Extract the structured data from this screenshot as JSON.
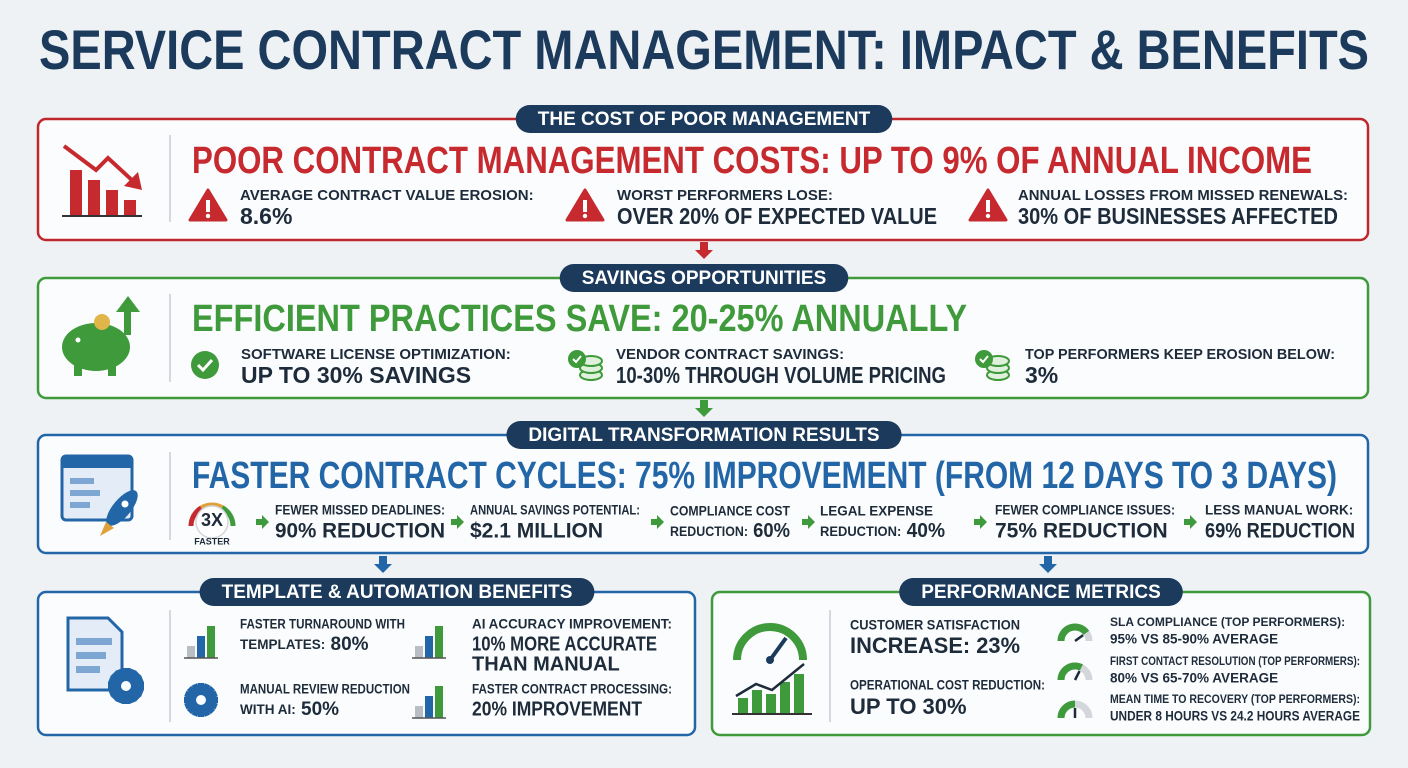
{
  "title": "SERVICE CONTRACT MANAGEMENT: IMPACT & BENEFITS",
  "cost": {
    "label": "THE COST OF POOR MANAGEMENT",
    "headline": "POOR CONTRACT MANAGEMENT COSTS: UP TO 9% OF ANNUAL INCOME",
    "items": [
      {
        "label": "AVERAGE CONTRACT VALUE EROSION:",
        "value": "8.6%"
      },
      {
        "label": "WORST PERFORMERS LOSE:",
        "value": "OVER 20% OF EXPECTED VALUE"
      },
      {
        "label": "ANNUAL LOSSES FROM MISSED RENEWALS:",
        "value": "30% OF BUSINESSES AFFECTED"
      }
    ]
  },
  "savings": {
    "label": "SAVINGS OPPORTUNITIES",
    "headline": "EFFICIENT PRACTICES SAVE: 20-25% ANNUALLY",
    "items": [
      {
        "label": "SOFTWARE LICENSE OPTIMIZATION:",
        "value": "UP TO 30% SAVINGS"
      },
      {
        "label": "VENDOR CONTRACT SAVINGS:",
        "value": "10-30% THROUGH VOLUME PRICING"
      },
      {
        "label": "TOP PERFORMERS KEEP EROSION BELOW:",
        "value": "3%"
      }
    ]
  },
  "digital": {
    "label": "DIGITAL TRANSFORMATION RESULTS",
    "headline": "FASTER CONTRACT CYCLES: 75% IMPROVEMENT (FROM 12 DAYS TO 3 DAYS)",
    "badge": {
      "value": "3X",
      "label": "FASTER"
    },
    "items": [
      {
        "label": [
          "FEWER MISSED DEADLINES:"
        ],
        "value": "90% REDUCTION"
      },
      {
        "label": [
          "ANNUAL SAVINGS POTENTIAL:"
        ],
        "value": "$2.1 MILLION"
      },
      {
        "label": [
          "COMPLIANCE COST",
          "REDUCTION:"
        ],
        "value": "60%"
      },
      {
        "label": [
          "LEGAL EXPENSE",
          "REDUCTION:"
        ],
        "value": "40%"
      },
      {
        "label": [
          "FEWER COMPLIANCE ISSUES:"
        ],
        "value": "75% REDUCTION"
      },
      {
        "label": [
          "LESS MANUAL WORK:"
        ],
        "value": "69% REDUCTION"
      }
    ]
  },
  "template": {
    "label": "TEMPLATE & AUTOMATION BENEFITS",
    "items": [
      {
        "label": [
          "FASTER TURNAROUND WITH",
          "TEMPLATES:"
        ],
        "value": [
          "80%"
        ]
      },
      {
        "label": [
          "AI ACCURACY IMPROVEMENT:"
        ],
        "value": [
          "10% MORE ACCURATE",
          "THAN MANUAL"
        ]
      },
      {
        "label": [
          "MANUAL REVIEW REDUCTION",
          "WITH AI:"
        ],
        "value": [
          "50%"
        ]
      },
      {
        "label": [
          "FASTER CONTRACT PROCESSING:"
        ],
        "value": [
          "20% IMPROVEMENT"
        ]
      }
    ]
  },
  "performance": {
    "label": "PERFORMANCE METRICS",
    "items": [
      {
        "label": "CUSTOMER SATISFACTION",
        "value": "INCREASE: 23%"
      },
      {
        "label": "OPERATIONAL COST REDUCTION:",
        "value": "UP TO 30%"
      }
    ],
    "benchmarks": [
      {
        "label": "SLA COMPLIANCE (TOP PERFORMERS):",
        "value": "95% VS 85-90% AVERAGE"
      },
      {
        "label": "FIRST CONTACT RESOLUTION (TOP PERFORMERS):",
        "value": "80% VS 65-70% AVERAGE"
      },
      {
        "label": "MEAN TIME TO RECOVERY (TOP PERFORMERS):",
        "value": "UNDER 8 HOURS VS 24.2 HOURS AVERAGE"
      }
    ]
  }
}
